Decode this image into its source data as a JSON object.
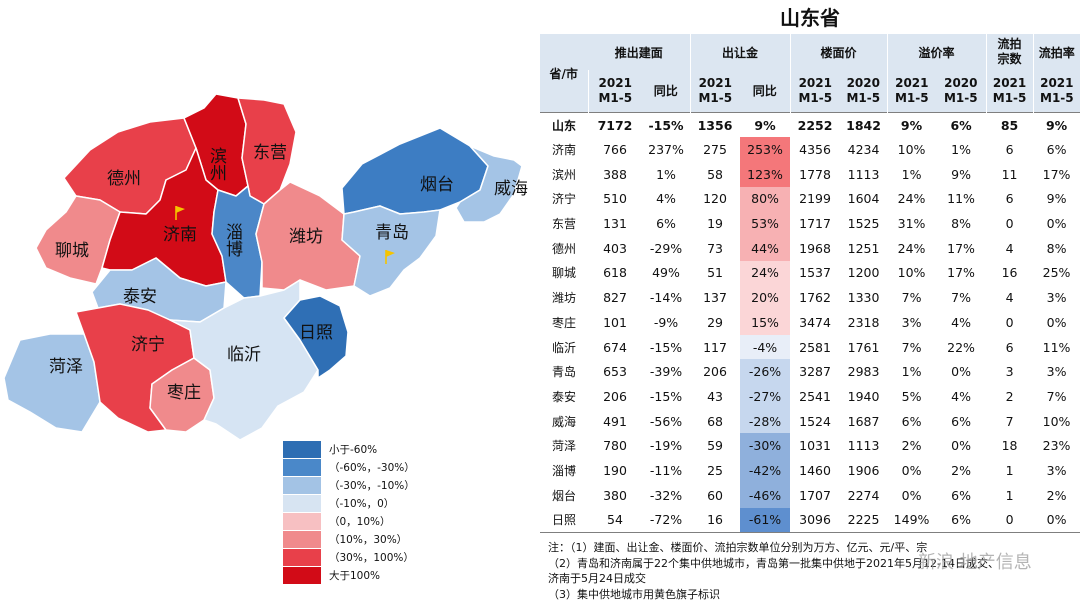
{
  "title": "山东省",
  "headers": {
    "province_city": "省/市",
    "groups": [
      "推出建面",
      "出让金",
      "楼面价",
      "溢价率",
      "流拍宗数",
      "流拍率"
    ],
    "subs": [
      "2021\nM1-5",
      "同比",
      "2021\nM1-5",
      "同比",
      "2021\nM1-5",
      "2020\nM1-5",
      "2021\nM1-5",
      "2020\nM1-5",
      "2021\nM1-5",
      "2021\nM1-5"
    ]
  },
  "rows": [
    {
      "name": "山东",
      "supply": "7172",
      "supply_yoy": "-15%",
      "transfer": "1356",
      "transfer_yoy": "9%",
      "price21": "2252",
      "price20": "1842",
      "prem21": "9%",
      "prem20": "6%",
      "failed": "85",
      "failed_rate": "9%",
      "yoy_value": 9
    },
    {
      "name": "济南",
      "supply": "766",
      "supply_yoy": "237%",
      "transfer": "275",
      "transfer_yoy": "253%",
      "price21": "4356",
      "price20": "4234",
      "prem21": "10%",
      "prem20": "1%",
      "failed": "6",
      "failed_rate": "6%",
      "yoy_value": 253
    },
    {
      "name": "滨州",
      "supply": "388",
      "supply_yoy": "1%",
      "transfer": "58",
      "transfer_yoy": "123%",
      "price21": "1778",
      "price20": "1113",
      "prem21": "1%",
      "prem20": "9%",
      "failed": "11",
      "failed_rate": "17%",
      "yoy_value": 123
    },
    {
      "name": "济宁",
      "supply": "510",
      "supply_yoy": "4%",
      "transfer": "120",
      "transfer_yoy": "80%",
      "price21": "2199",
      "price20": "1604",
      "prem21": "24%",
      "prem20": "11%",
      "failed": "6",
      "failed_rate": "9%",
      "yoy_value": 80
    },
    {
      "name": "东营",
      "supply": "131",
      "supply_yoy": "6%",
      "transfer": "19",
      "transfer_yoy": "53%",
      "price21": "1717",
      "price20": "1525",
      "prem21": "31%",
      "prem20": "8%",
      "failed": "0",
      "failed_rate": "0%",
      "yoy_value": 53
    },
    {
      "name": "德州",
      "supply": "403",
      "supply_yoy": "-29%",
      "transfer": "73",
      "transfer_yoy": "44%",
      "price21": "1968",
      "price20": "1251",
      "prem21": "24%",
      "prem20": "17%",
      "failed": "4",
      "failed_rate": "8%",
      "yoy_value": 44
    },
    {
      "name": "聊城",
      "supply": "618",
      "supply_yoy": "49%",
      "transfer": "51",
      "transfer_yoy": "24%",
      "price21": "1537",
      "price20": "1200",
      "prem21": "10%",
      "prem20": "17%",
      "failed": "16",
      "failed_rate": "25%",
      "yoy_value": 24
    },
    {
      "name": "潍坊",
      "supply": "827",
      "supply_yoy": "-14%",
      "transfer": "137",
      "transfer_yoy": "20%",
      "price21": "1762",
      "price20": "1330",
      "prem21": "7%",
      "prem20": "7%",
      "failed": "4",
      "failed_rate": "3%",
      "yoy_value": 20
    },
    {
      "name": "枣庄",
      "supply": "101",
      "supply_yoy": "-9%",
      "transfer": "29",
      "transfer_yoy": "15%",
      "price21": "3474",
      "price20": "2318",
      "prem21": "3%",
      "prem20": "4%",
      "failed": "0",
      "failed_rate": "0%",
      "yoy_value": 15
    },
    {
      "name": "临沂",
      "supply": "674",
      "supply_yoy": "-15%",
      "transfer": "117",
      "transfer_yoy": "-4%",
      "price21": "2581",
      "price20": "1761",
      "prem21": "7%",
      "prem20": "22%",
      "failed": "6",
      "failed_rate": "11%",
      "yoy_value": -4
    },
    {
      "name": "青岛",
      "supply": "653",
      "supply_yoy": "-39%",
      "transfer": "206",
      "transfer_yoy": "-26%",
      "price21": "3287",
      "price20": "2983",
      "prem21": "1%",
      "prem20": "0%",
      "failed": "3",
      "failed_rate": "3%",
      "yoy_value": -26
    },
    {
      "name": "泰安",
      "supply": "206",
      "supply_yoy": "-15%",
      "transfer": "43",
      "transfer_yoy": "-27%",
      "price21": "2541",
      "price20": "1940",
      "prem21": "5%",
      "prem20": "4%",
      "failed": "2",
      "failed_rate": "7%",
      "yoy_value": -27
    },
    {
      "name": "威海",
      "supply": "491",
      "supply_yoy": "-56%",
      "transfer": "68",
      "transfer_yoy": "-28%",
      "price21": "1524",
      "price20": "1687",
      "prem21": "6%",
      "prem20": "6%",
      "failed": "7",
      "failed_rate": "10%",
      "yoy_value": -28
    },
    {
      "name": "菏泽",
      "supply": "780",
      "supply_yoy": "-19%",
      "transfer": "59",
      "transfer_yoy": "-30%",
      "price21": "1031",
      "price20": "1113",
      "prem21": "2%",
      "prem20": "0%",
      "failed": "18",
      "failed_rate": "23%",
      "yoy_value": -30
    },
    {
      "name": "淄博",
      "supply": "190",
      "supply_yoy": "-11%",
      "transfer": "25",
      "transfer_yoy": "-42%",
      "price21": "1460",
      "price20": "1906",
      "prem21": "0%",
      "prem20": "2%",
      "failed": "1",
      "failed_rate": "3%",
      "yoy_value": -42
    },
    {
      "name": "烟台",
      "supply": "380",
      "supply_yoy": "-32%",
      "transfer": "60",
      "transfer_yoy": "-46%",
      "price21": "1707",
      "price20": "2274",
      "prem21": "0%",
      "prem20": "6%",
      "failed": "1",
      "failed_rate": "2%",
      "yoy_value": -46
    },
    {
      "name": "日照",
      "supply": "54",
      "supply_yoy": "-72%",
      "transfer": "16",
      "transfer_yoy": "-61%",
      "price21": "3096",
      "price20": "2225",
      "prem21": "149%",
      "prem20": "6%",
      "failed": "0",
      "failed_rate": "0%",
      "yoy_value": -61
    }
  ],
  "map": {
    "regions": [
      {
        "id": "dezhou",
        "label": "德州",
        "color": "#e8404a"
      },
      {
        "id": "binzhou",
        "label": "滨州",
        "color": "#d20b17"
      },
      {
        "id": "dongying",
        "label": "东营",
        "color": "#e8404a"
      },
      {
        "id": "liaocheng",
        "label": "聊城",
        "color": "#f08a8c"
      },
      {
        "id": "jinan",
        "label": "济南",
        "color": "#d20b17"
      },
      {
        "id": "zibo",
        "label": "淄博",
        "color": "#4b87c8"
      },
      {
        "id": "weifang",
        "label": "潍坊",
        "color": "#f08a8c"
      },
      {
        "id": "yantai",
        "label": "烟台",
        "color": "#3d7dc3"
      },
      {
        "id": "weihai",
        "label": "威海",
        "color": "#a4c4e6"
      },
      {
        "id": "qingdao",
        "label": "青岛",
        "color": "#a4c4e6"
      },
      {
        "id": "taian",
        "label": "泰安",
        "color": "#a4c4e6"
      },
      {
        "id": "heze",
        "label": "菏泽",
        "color": "#a4c4e6"
      },
      {
        "id": "jining",
        "label": "济宁",
        "color": "#e8404a"
      },
      {
        "id": "zaozhuang",
        "label": "枣庄",
        "color": "#f08a8c"
      },
      {
        "id": "linyi",
        "label": "临沂",
        "color": "#d6e4f3"
      },
      {
        "id": "rizhao",
        "label": "日照",
        "color": "#2f6fb5"
      }
    ],
    "flag_cities": [
      "济南",
      "青岛"
    ],
    "flag_color": "#f5c400"
  },
  "legend": [
    {
      "label": "小于-60%",
      "color": "#2e6eb3"
    },
    {
      "label": "（-60%，-30%）",
      "color": "#4a88c9"
    },
    {
      "label": "（-30%，-10%）",
      "color": "#a3c3e5"
    },
    {
      "label": "（-10%，0）",
      "color": "#d7e4f2"
    },
    {
      "label": "（0，10%）",
      "color": "#f7c0c2"
    },
    {
      "label": "（10%，30%）",
      "color": "#f08a8c"
    },
    {
      "label": "（30%，100%）",
      "color": "#e8404a"
    },
    {
      "label": "大于100%",
      "color": "#d20b17"
    }
  ],
  "notes": [
    "注：（1）建面、出让金、楼面价、流拍宗数单位分别为万方、亿元、元/平、宗",
    "（2）青岛和济南属于22个集中供地城市，青岛第一批集中供地于2021年5月12-14日成交、",
    "济南于5月24日成交",
    "（3）集中供地城市用黄色旗子标识"
  ],
  "watermark": "新浪 地产信息"
}
